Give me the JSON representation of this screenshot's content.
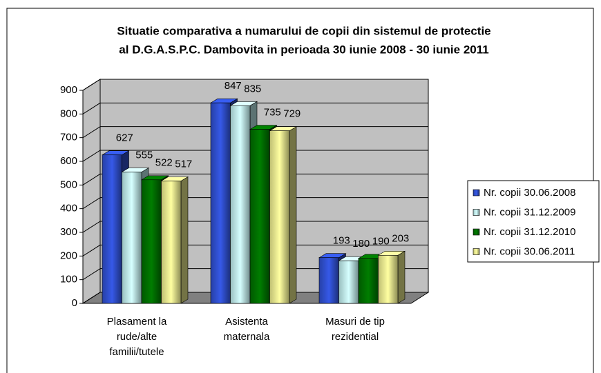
{
  "chart_data": {
    "type": "bar3d",
    "title": "Situatie comparativa a numarului de copii din sistemul de protectie",
    "subtitle": "al D.G.A.S.P.C. Dambovita in perioada 30 iunie 2008 - 30 iunie 2011",
    "categories": [
      "Plasament la rude/alte familii/tutele",
      "Asistenta maternala",
      "Masuri de tip rezidential"
    ],
    "series": [
      {
        "name": "Nr. copii 30.06.2008",
        "color": "#3355dd",
        "values": [
          627,
          847,
          193
        ]
      },
      {
        "name": "Nr. copii 31.12.2009",
        "color": "#ccffff",
        "values": [
          555,
          835,
          180
        ]
      },
      {
        "name": "Nr. copii 31.12.2010",
        "color": "#007700",
        "values": [
          522,
          735,
          190
        ]
      },
      {
        "name": "Nr. copii 30.06.2011",
        "color": "#ffff99",
        "values": [
          517,
          729,
          203
        ]
      }
    ],
    "ylim": [
      0,
      900
    ],
    "yticks": [
      0,
      100,
      200,
      300,
      400,
      500,
      600,
      700,
      800,
      900
    ],
    "grid": true,
    "legend": "right"
  }
}
